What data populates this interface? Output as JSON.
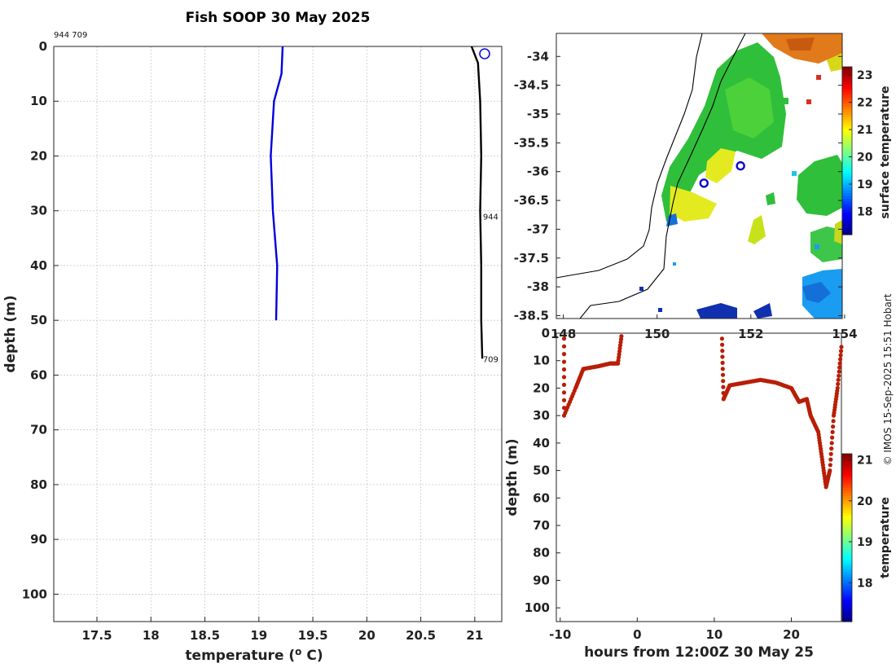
{
  "chart_data": [
    {
      "id": "profile",
      "type": "line",
      "title": "Fish SOOP 30 May 2025",
      "xlabel": "temperature (",
      "xlabel_sup": "o",
      "xlabel_end": " C)",
      "ylabel": "depth (m)",
      "xlim": [
        17.1,
        21.25
      ],
      "ylim": [
        0,
        105
      ],
      "y_inverted": true,
      "grid": true,
      "x_ticks": [
        "17.5",
        "18",
        "18.5",
        "19",
        "19.5",
        "20",
        "20.5",
        "21"
      ],
      "x_tick_values": [
        17.5,
        18,
        18.5,
        19,
        19.5,
        20,
        20.5,
        21
      ],
      "y_ticks": [
        "0",
        "10",
        "20",
        "30",
        "40",
        "50",
        "60",
        "70",
        "80",
        "90",
        "100"
      ],
      "y_tick_values": [
        0,
        10,
        20,
        30,
        40,
        50,
        60,
        70,
        80,
        90,
        100
      ],
      "top_annotation": "944 709",
      "series": [
        {
          "name": "profile 944",
          "color": "#0000dd",
          "points": [
            [
              19.22,
              0
            ],
            [
              19.21,
              5
            ],
            [
              19.14,
              10
            ],
            [
              19.11,
              20
            ],
            [
              19.13,
              30
            ],
            [
              19.17,
              40
            ],
            [
              19.16,
              50
            ]
          ]
        },
        {
          "name": "profile 709",
          "color": "#000000",
          "points": [
            [
              20.97,
              0
            ],
            [
              21.03,
              3
            ],
            [
              21.05,
              10
            ],
            [
              21.06,
              20
            ],
            [
              21.05,
              30
            ],
            [
              21.06,
              40
            ],
            [
              21.06,
              50
            ],
            [
              21.07,
              57
            ]
          ]
        }
      ],
      "end_labels": [
        {
          "text": "944",
          "x": 21.06,
          "y": 31
        },
        {
          "text": "709",
          "x": 21.06,
          "y": 57
        }
      ]
    },
    {
      "id": "map",
      "type": "heatmap",
      "x_ticks": [
        "148",
        "150",
        "152",
        "154"
      ],
      "x_tick_values": [
        148,
        150,
        152,
        154
      ],
      "xlim": [
        147.85,
        153.95
      ],
      "y_ticks": [
        "-34",
        "-34.5",
        "-35",
        "-35.5",
        "-36",
        "-36.5",
        "-37",
        "-37.5",
        "-38",
        "-38.5"
      ],
      "y_tick_values": [
        -34,
        -34.5,
        -35,
        -35.5,
        -36,
        -36.5,
        -37,
        -37.5,
        -38,
        -38.5
      ],
      "ylim": [
        -38.55,
        -33.6
      ],
      "markers": [
        {
          "lon": 151.0,
          "lat": -36.2
        },
        {
          "lon": 151.78,
          "lat": -35.9
        }
      ],
      "colorbar": {
        "label": "surface temperature",
        "min": 17.15,
        "max": 23.3,
        "ticks": [
          "18",
          "19",
          "20",
          "21",
          "22",
          "23"
        ],
        "tick_values": [
          18,
          19,
          20,
          21,
          22,
          23
        ]
      }
    },
    {
      "id": "timeseries",
      "type": "scatter",
      "xlabel": "hours from 12:00Z 30 May 25",
      "ylabel": "depth (m)",
      "xlim": [
        -10.5,
        26.5
      ],
      "ylim": [
        0,
        105
      ],
      "y_inverted": true,
      "x_ticks": [
        "-10",
        "0",
        "10",
        "20"
      ],
      "x_tick_values": [
        -10,
        0,
        10,
        20
      ],
      "y_ticks": [
        "0",
        "10",
        "20",
        "30",
        "40",
        "50",
        "60",
        "70",
        "80",
        "90",
        "100"
      ],
      "y_tick_values": [
        0,
        10,
        20,
        30,
        40,
        50,
        60,
        70,
        80,
        90,
        100
      ],
      "points": [
        [
          -9.5,
          2
        ],
        [
          -9.5,
          30
        ],
        [
          -8.0,
          20
        ],
        [
          -7.0,
          13
        ],
        [
          -5.0,
          12
        ],
        [
          -3.5,
          11
        ],
        [
          -2.5,
          11
        ],
        [
          -2.0,
          0
        ],
        [
          11.0,
          2
        ],
        [
          11.2,
          24
        ],
        [
          12.0,
          19
        ],
        [
          14.0,
          18
        ],
        [
          16.0,
          17
        ],
        [
          18.0,
          18
        ],
        [
          20.0,
          20
        ],
        [
          21.0,
          25
        ],
        [
          22.0,
          24
        ],
        [
          22.5,
          30
        ],
        [
          23.5,
          36
        ],
        [
          24.0,
          46
        ],
        [
          24.5,
          56
        ],
        [
          25.0,
          50
        ],
        [
          25.5,
          30
        ],
        [
          26.0,
          20
        ],
        [
          26.5,
          5
        ]
      ],
      "colorbar": {
        "label": "temperature",
        "min": 17.05,
        "max": 21.15,
        "ticks": [
          "18",
          "19",
          "20",
          "21"
        ],
        "tick_values": [
          18,
          19,
          20,
          21
        ]
      }
    }
  ],
  "credit": "© IMOS 15-Sep-2025 15:51 Hobart"
}
